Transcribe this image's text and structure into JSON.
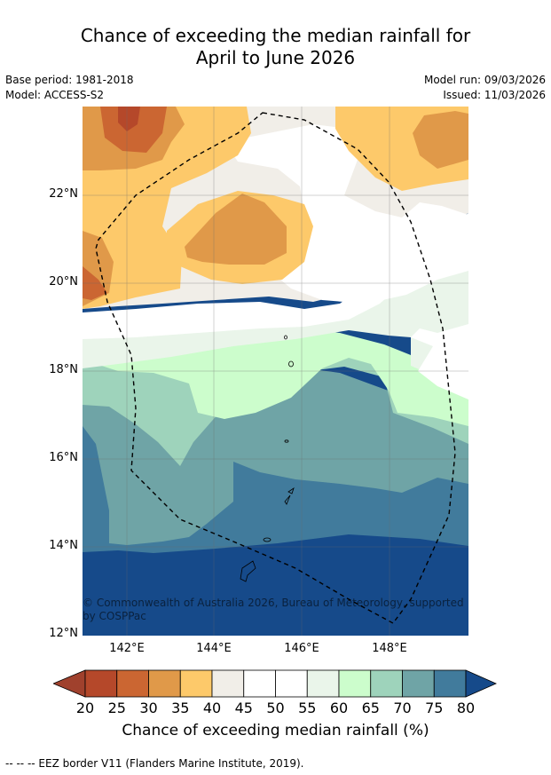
{
  "title": {
    "line1": "Chance of exceeding the median rainfall for",
    "line2": "April to June 2026"
  },
  "meta": {
    "base_period": "Base period: 1981-2018",
    "model": "Model: ACCESS-S2",
    "model_run": "Model run: 09/03/2026",
    "issued": "Issued: 11/03/2026"
  },
  "map": {
    "lat_labels": [
      "22°N",
      "20°N",
      "18°N",
      "16°N",
      "14°N",
      "12°N"
    ],
    "lon_labels": [
      "142°E",
      "144°E",
      "146°E",
      "148°E"
    ],
    "copyright_line1": "© Commonwealth of Australia 2026, Bureau of Meteorology, supported",
    "copyright_line2": "by COSPPac",
    "colors": {
      "c20_25": "#b5482a",
      "c25_30": "#cb6632",
      "c30_35": "#e09949",
      "c35_40": "#fdc96a",
      "c40_45": "#f1eee8",
      "c45_55": "#ffffff",
      "c55_60": "#eaf5ea",
      "c60_65": "#ccfdcc",
      "c65_70": "#9ed3bb",
      "c70_75": "#6fa4a6",
      "c75_80": "#417b9c",
      "c80": "#164a8a"
    }
  },
  "colorbar": {
    "ticks": [
      "20",
      "25",
      "30",
      "35",
      "40",
      "45",
      "50",
      "55",
      "60",
      "65",
      "70",
      "75",
      "80"
    ],
    "colors": [
      "#a0412d",
      "#b5482a",
      "#cb6632",
      "#e09949",
      "#fdc96a",
      "#f1eee8",
      "#ffffff",
      "#ffffff",
      "#eaf5ea",
      "#ccfdcc",
      "#9ed3bb",
      "#6fa4a6",
      "#417b9c",
      "#164a8a"
    ],
    "label": "Chance of exceeding median rainfall (%)"
  },
  "footnote": "--  --  -- EEZ border V11 (Flanders Marine Institute, 2019)."
}
